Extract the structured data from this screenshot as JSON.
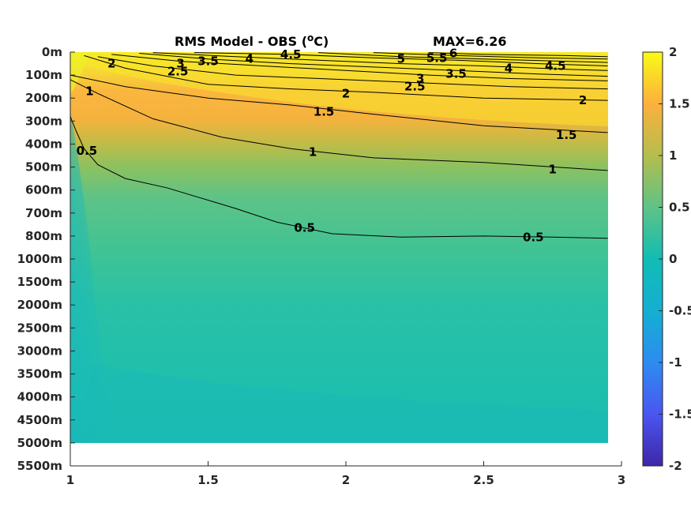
{
  "chart_data": {
    "type": "heatmap",
    "title": "RMS Model - OBS (",
    "title_unit_sup": "o",
    "title_unit": "C)",
    "max_label": "MAX=6.26",
    "x_ticks": [
      "1",
      "1.5",
      "2",
      "2.5",
      "3"
    ],
    "x_tick_values": [
      1,
      1.5,
      2,
      2.5,
      3
    ],
    "xlim": [
      1,
      3
    ],
    "y_ticks": [
      "0m",
      "100m",
      "200m",
      "300m",
      "400m",
      "500m",
      "600m",
      "700m",
      "800m",
      "1000m",
      "1500m",
      "2000m",
      "2500m",
      "3000m",
      "3500m",
      "4000m",
      "4500m",
      "5000m",
      "5500m"
    ],
    "y_axis_reversed": true,
    "data_extent": {
      "x": [
        1,
        2.95
      ],
      "depth_level_max_index": 17
    },
    "colorbar": {
      "ticks": [
        "2",
        "1.5",
        "1",
        "0.5",
        "0",
        "-0.5",
        "-1",
        "-1.5",
        "-2"
      ],
      "tick_values": [
        2,
        1.5,
        1,
        0.5,
        0,
        -0.5,
        -1,
        -1.5,
        -2
      ],
      "clim": [
        -2,
        2
      ],
      "colormap": "parula"
    },
    "contours": [
      {
        "level": "0.5",
        "points": [
          [
            1.0,
            2.8
          ],
          [
            1.02,
            3.4
          ],
          [
            1.05,
            4.2
          ],
          [
            1.1,
            4.9
          ],
          [
            1.2,
            5.5
          ],
          [
            1.35,
            5.9
          ],
          [
            1.6,
            6.8
          ],
          [
            1.75,
            7.4
          ],
          [
            1.95,
            7.9
          ],
          [
            2.2,
            8.05
          ],
          [
            2.5,
            8.0
          ],
          [
            2.75,
            8.05
          ],
          [
            2.95,
            8.1
          ]
        ],
        "labels": [
          [
            1.06,
            4.3
          ],
          [
            1.85,
            7.65
          ],
          [
            2.68,
            8.05
          ]
        ]
      },
      {
        "level": "1",
        "points": [
          [
            1.0,
            1.2
          ],
          [
            1.1,
            1.8
          ],
          [
            1.3,
            2.9
          ],
          [
            1.55,
            3.7
          ],
          [
            1.8,
            4.2
          ],
          [
            2.1,
            4.6
          ],
          [
            2.5,
            4.8
          ],
          [
            2.95,
            5.15
          ]
        ],
        "labels": [
          [
            1.07,
            1.7
          ],
          [
            1.88,
            4.35
          ],
          [
            2.75,
            5.1
          ]
        ]
      },
      {
        "level": "1.5",
        "points": [
          [
            1.0,
            1.0
          ],
          [
            1.2,
            1.5
          ],
          [
            1.5,
            2.0
          ],
          [
            1.8,
            2.3
          ],
          [
            2.1,
            2.7
          ],
          [
            2.5,
            3.2
          ],
          [
            2.95,
            3.5
          ]
        ],
        "labels": [
          [
            1.92,
            2.6
          ],
          [
            2.8,
            3.6
          ]
        ]
      },
      {
        "level": "2",
        "points": [
          [
            1.05,
            0.15
          ],
          [
            1.2,
            0.7
          ],
          [
            1.5,
            1.4
          ],
          [
            1.8,
            1.6
          ],
          [
            2.1,
            1.75
          ],
          [
            2.5,
            2.0
          ],
          [
            2.95,
            2.1
          ]
        ],
        "labels": [
          [
            1.15,
            0.5
          ],
          [
            2.0,
            1.8
          ],
          [
            2.86,
            2.1
          ]
        ]
      },
      {
        "level": "2.5",
        "points": [
          [
            1.1,
            0.2
          ],
          [
            1.3,
            0.6
          ],
          [
            1.6,
            1.0
          ],
          [
            2.0,
            1.2
          ],
          [
            2.3,
            1.35
          ],
          [
            2.6,
            1.5
          ],
          [
            2.95,
            1.6
          ]
        ],
        "labels": [
          [
            1.39,
            0.85
          ],
          [
            2.25,
            1.5
          ]
        ]
      },
      {
        "level": "3",
        "points": [
          [
            1.15,
            0.1
          ],
          [
            1.4,
            0.4
          ],
          [
            1.7,
            0.6
          ],
          [
            2.0,
            0.8
          ],
          [
            2.3,
            1.0
          ],
          [
            2.6,
            1.15
          ],
          [
            2.95,
            1.25
          ]
        ],
        "labels": [
          [
            1.4,
            0.5
          ],
          [
            2.27,
            1.15
          ]
        ]
      },
      {
        "level": "3.5",
        "points": [
          [
            1.25,
            0.05
          ],
          [
            1.5,
            0.3
          ],
          [
            1.8,
            0.5
          ],
          [
            2.1,
            0.65
          ],
          [
            2.4,
            0.8
          ],
          [
            2.7,
            0.95
          ],
          [
            2.95,
            1.05
          ]
        ],
        "labels": [
          [
            1.5,
            0.4
          ],
          [
            2.4,
            0.95
          ]
        ]
      },
      {
        "level": "4",
        "points": [
          [
            1.3,
            0.02
          ],
          [
            1.6,
            0.2
          ],
          [
            1.9,
            0.35
          ],
          [
            2.2,
            0.5
          ],
          [
            2.5,
            0.6
          ],
          [
            2.8,
            0.75
          ],
          [
            2.95,
            0.8
          ]
        ],
        "labels": [
          [
            1.65,
            0.3
          ],
          [
            2.59,
            0.7
          ]
        ]
      },
      {
        "level": "4.5",
        "points": [
          [
            1.45,
            0.02
          ],
          [
            1.8,
            0.1
          ],
          [
            2.1,
            0.25
          ],
          [
            2.4,
            0.35
          ],
          [
            2.7,
            0.5
          ],
          [
            2.95,
            0.6
          ]
        ],
        "labels": [
          [
            1.8,
            0.1
          ],
          [
            2.76,
            0.6
          ]
        ]
      },
      {
        "level": "5",
        "points": [
          [
            1.9,
            0.02
          ],
          [
            2.2,
            0.2
          ],
          [
            2.5,
            0.3
          ],
          [
            2.8,
            0.4
          ],
          [
            2.95,
            0.45
          ]
        ],
        "labels": [
          [
            2.2,
            0.3
          ]
        ]
      },
      {
        "level": "5.5",
        "points": [
          [
            2.1,
            0.02
          ],
          [
            2.4,
            0.15
          ],
          [
            2.7,
            0.25
          ],
          [
            2.95,
            0.3
          ]
        ],
        "labels": [
          [
            2.33,
            0.25
          ]
        ]
      },
      {
        "level": "6",
        "points": [
          [
            2.3,
            0.02
          ],
          [
            2.5,
            0.1
          ],
          [
            2.8,
            0.15
          ],
          [
            2.95,
            0.2
          ]
        ],
        "labels": [
          [
            2.39,
            0.05
          ]
        ]
      }
    ]
  }
}
